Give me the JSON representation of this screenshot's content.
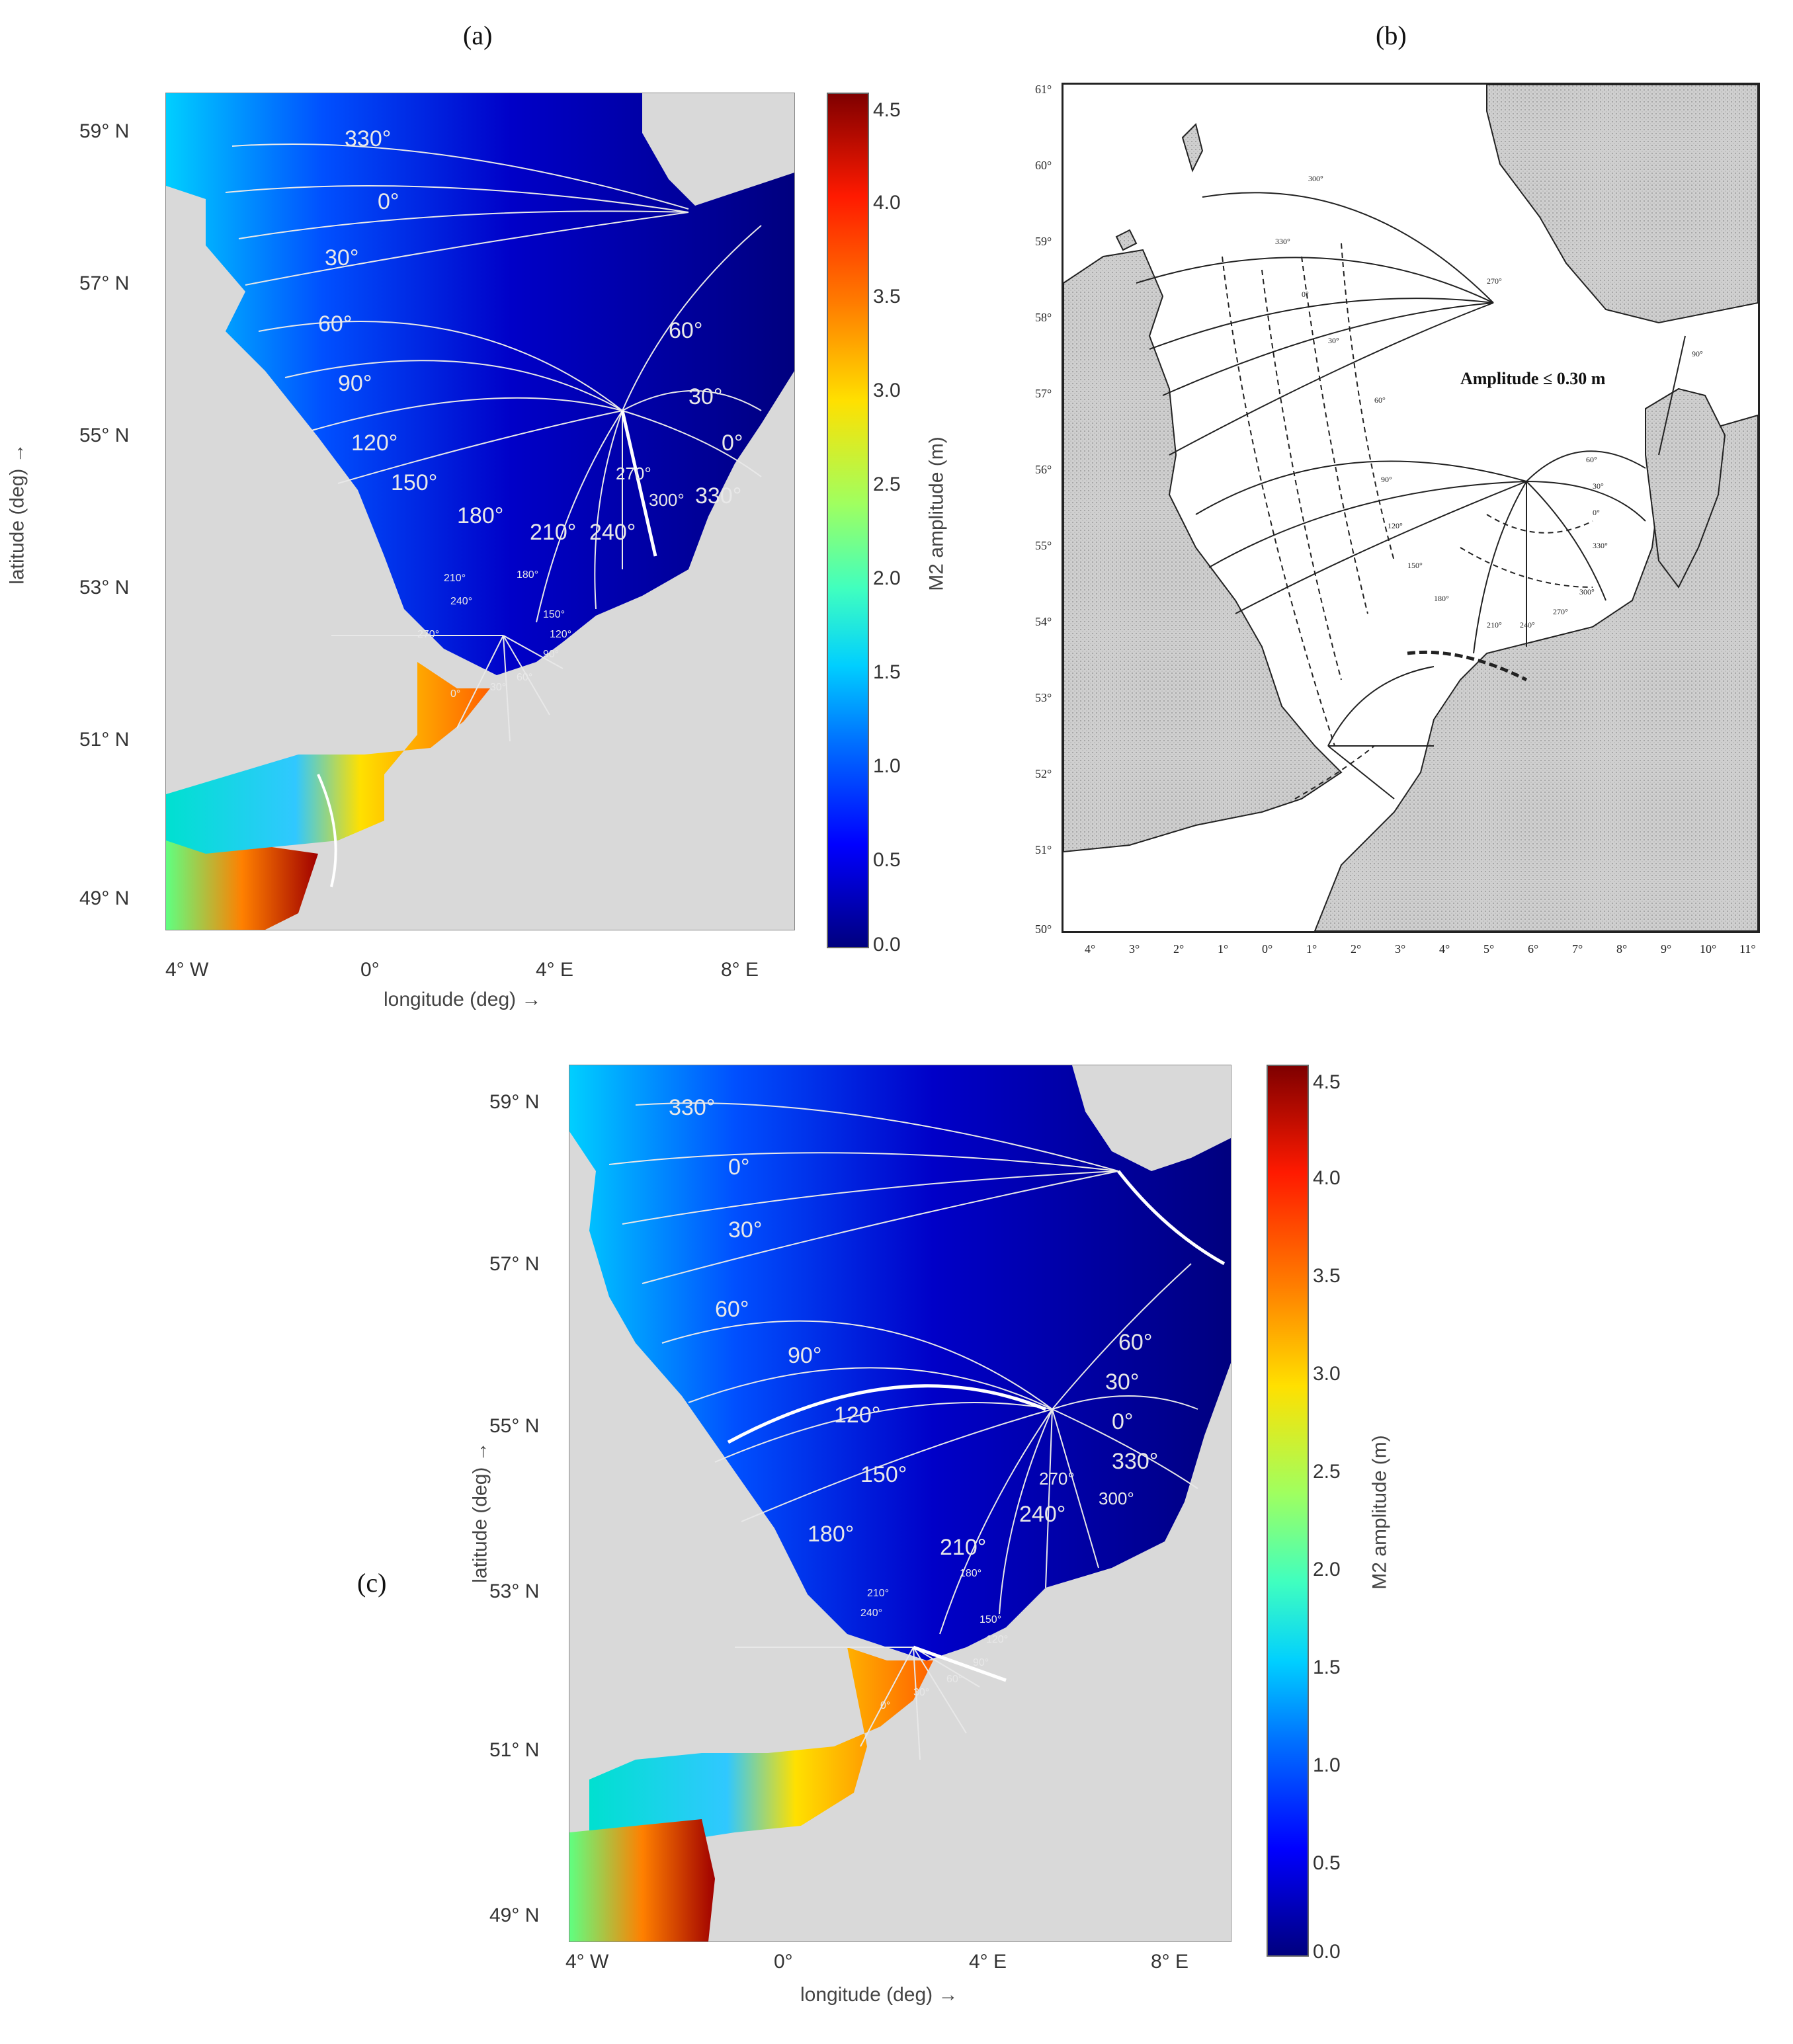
{
  "panels": {
    "a": {
      "label": "(a)",
      "lat_ticks": [
        "59° N",
        "57° N",
        "55° N",
        "53° N",
        "51° N",
        "49° N"
      ],
      "lon_ticks": [
        "4° W",
        "0°",
        "4° E",
        "8° E"
      ],
      "xlabel": "longitude (deg) →",
      "ylabel": "latitude (deg) →",
      "colorbar_label": "M2 amplitude (m)",
      "colorbar_ticks": [
        "4.5",
        "4.0",
        "3.5",
        "3.0",
        "2.5",
        "2.0",
        "1.5",
        "1.0",
        "0.5",
        "0.0"
      ],
      "phase_labels": [
        "330°",
        "0°",
        "30°",
        "60°",
        "90°",
        "120°",
        "150°",
        "180°",
        "210°",
        "240°",
        "270°",
        "300°",
        "330°",
        "0°",
        "30°",
        "60°"
      ],
      "small_phase_labels": [
        "210°",
        "240°",
        "270°",
        "180°",
        "150°",
        "120°",
        "90°",
        "60°",
        "30°",
        "0°"
      ]
    },
    "b": {
      "label": "(b)",
      "lat_ticks": [
        "61°",
        "60°",
        "59°",
        "58°",
        "57°",
        "56°",
        "55°",
        "54°",
        "53°",
        "52°",
        "51°",
        "50°"
      ],
      "lon_ticks": [
        "4°",
        "3°",
        "2°",
        "1°",
        "0°",
        "1°",
        "2°",
        "3°",
        "4°",
        "5°",
        "6°",
        "7°",
        "8°",
        "9°",
        "10°",
        "11°"
      ],
      "amplitude_note": "Amplitude ≤ 0.30 m",
      "phase_labels": [
        "300°",
        "330°",
        "0°",
        "30°",
        "60°",
        "90°",
        "120°",
        "150°",
        "180°",
        "210°",
        "240°",
        "270°",
        "300°",
        "330°",
        "0°",
        "30°",
        "60°",
        "90°",
        "270°"
      ]
    },
    "c": {
      "label": "(c)",
      "lat_ticks": [
        "59° N",
        "57° N",
        "55° N",
        "53° N",
        "51° N",
        "49° N"
      ],
      "lon_ticks": [
        "4° W",
        "0°",
        "4° E",
        "8° E"
      ],
      "xlabel": "longitude (deg) →",
      "ylabel": "latitude (deg) →",
      "colorbar_label": "M2 amplitude (m)",
      "colorbar_ticks": [
        "4.5",
        "4.0",
        "3.5",
        "3.0",
        "2.5",
        "2.0",
        "1.5",
        "1.0",
        "0.5",
        "0.0"
      ],
      "phase_labels": [
        "330°",
        "0°",
        "30°",
        "60°",
        "90°",
        "120°",
        "150°",
        "180°",
        "210°",
        "240°",
        "270°",
        "300°",
        "330°",
        "0°",
        "30°",
        "60°"
      ],
      "small_phase_labels": [
        "210°",
        "240°",
        "180°",
        "150°",
        "120°",
        "90°",
        "60°",
        "30°",
        "0°"
      ]
    }
  },
  "colors": {
    "land": "#d9d9d9",
    "deep_blue": "#00007f",
    "contour": "#e8e8e8"
  }
}
